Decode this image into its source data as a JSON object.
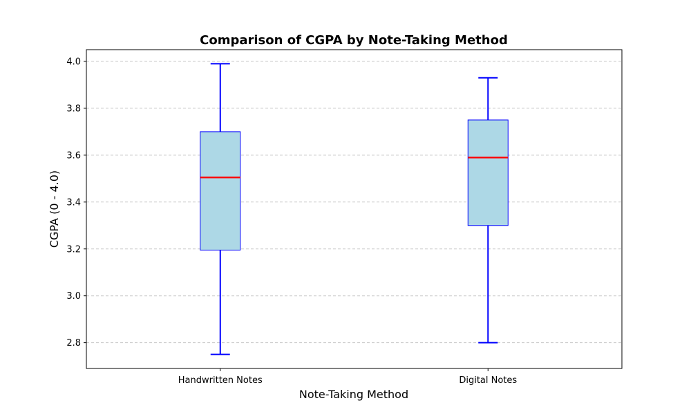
{
  "chart_data": {
    "type": "boxplot",
    "title": "Comparison of CGPA by Note-Taking Method",
    "xlabel": "Note-Taking Method",
    "ylabel": "CGPA (0 - 4.0)",
    "ylim": [
      2.69,
      4.05
    ],
    "yticks": [
      2.8,
      3.0,
      3.2,
      3.4,
      3.6,
      3.8,
      4.0
    ],
    "ytick_labels": [
      "2.8",
      "3.0",
      "3.2",
      "3.4",
      "3.6",
      "3.8",
      "4.0"
    ],
    "grid": "y-dashed",
    "categories": [
      "Handwritten Notes",
      "Digital Notes"
    ],
    "boxes": [
      {
        "name": "Handwritten Notes",
        "whisker_low": 2.75,
        "q1": 3.195,
        "median": 3.505,
        "q3": 3.7,
        "whisker_high": 3.99
      },
      {
        "name": "Digital Notes",
        "whisker_low": 2.8,
        "q1": 3.3,
        "median": 3.59,
        "q3": 3.75,
        "whisker_high": 3.93
      }
    ]
  },
  "colors": {
    "box_fill": "#add8e6",
    "box_edge": "#0000ff",
    "whisker": "#0000ff",
    "median": "#ff0000",
    "grid": "#c8c8c8",
    "axes": "#000000"
  }
}
